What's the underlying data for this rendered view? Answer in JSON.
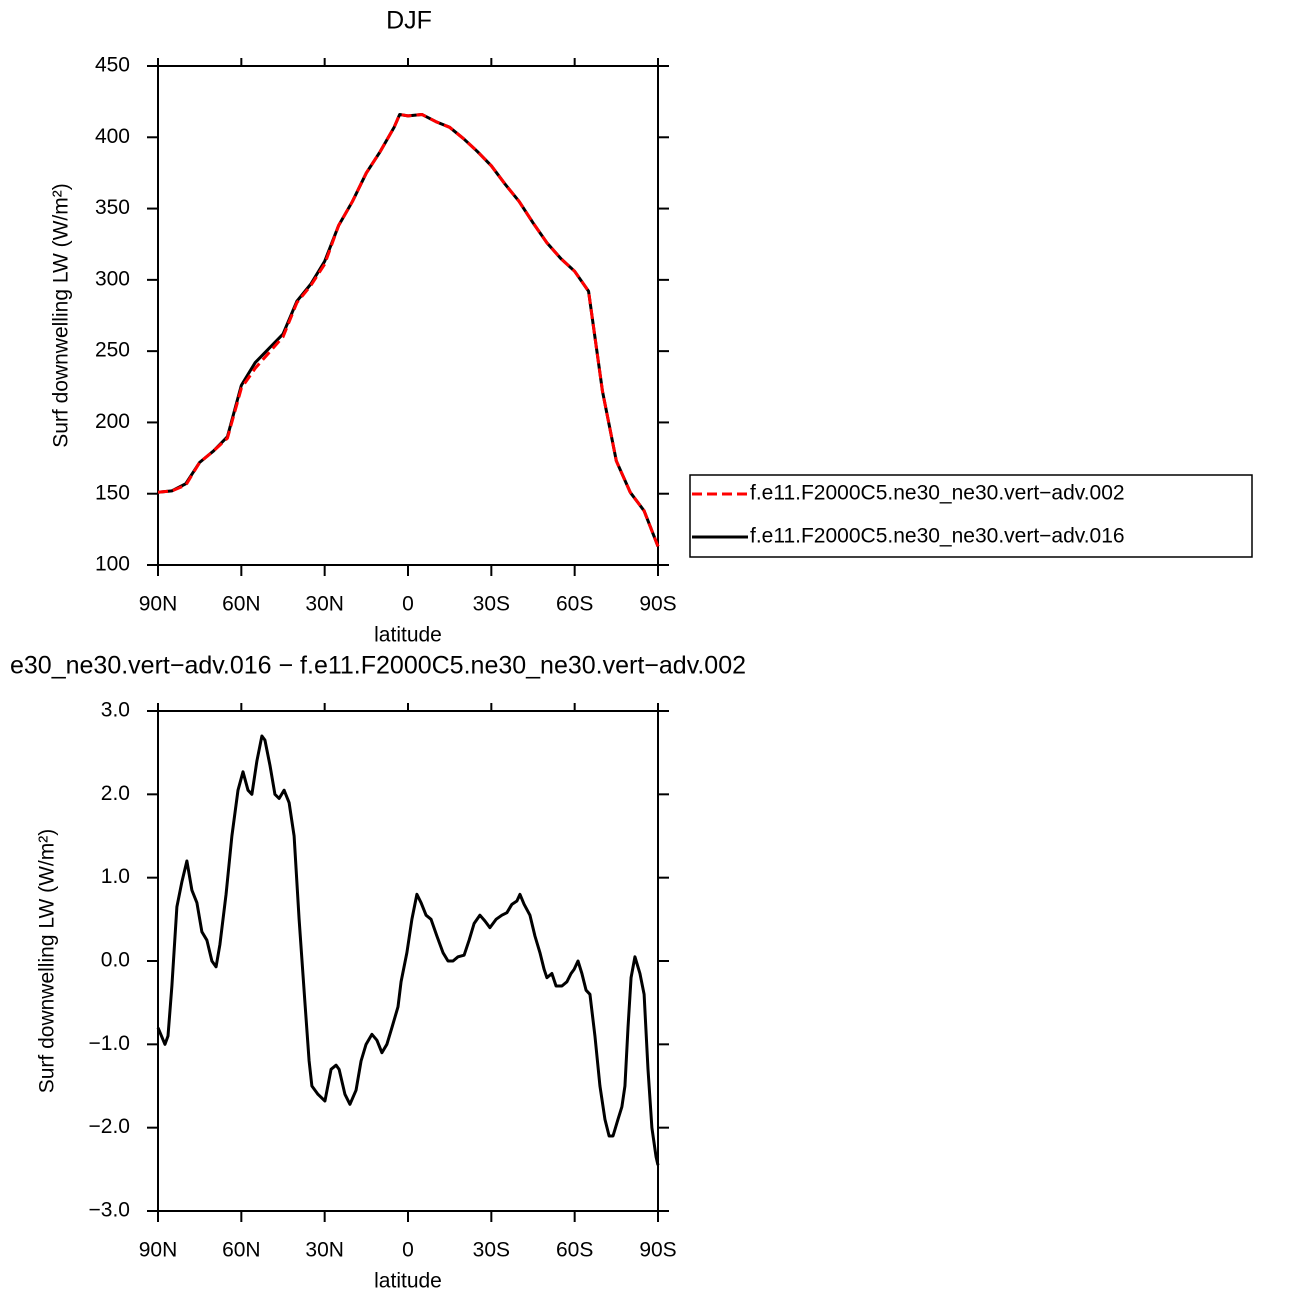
{
  "chart_data": [
    {
      "type": "line",
      "title": "DJF",
      "xlabel": "latitude",
      "ylabel": "Surf downwelling LW (W/m²)",
      "x": [
        90,
        85,
        80,
        75,
        70,
        65,
        60,
        55,
        50,
        45,
        40,
        35,
        30,
        25,
        20,
        15,
        10,
        5,
        3,
        0,
        -5,
        -10,
        -15,
        -20,
        -25,
        -30,
        -35,
        -40,
        -45,
        -50,
        -55,
        -60,
        -65,
        -70,
        -75,
        -80,
        -85,
        -90
      ],
      "series": [
        {
          "name": "f.e11.F2000C5.ne30_ne30.vert−adv.002",
          "color": "#ff0000",
          "dash": true,
          "values": [
            151,
            152,
            156,
            172,
            180,
            189,
            224,
            238,
            249,
            260,
            284,
            296,
            311,
            338,
            355,
            375,
            390,
            407,
            416,
            415,
            416,
            411,
            407,
            399,
            390,
            380,
            367,
            355,
            340,
            326,
            315,
            306,
            292,
            222,
            173,
            151,
            138,
            113
          ]
        },
        {
          "name": "f.e11.F2000C5.ne30_ne30.vert−adv.016",
          "color": "#000000",
          "dash": false,
          "values": [
            151,
            152,
            157,
            172,
            180,
            190,
            226,
            242,
            252,
            262,
            285,
            297,
            313,
            338,
            355,
            375,
            390,
            407,
            416,
            415,
            416,
            411,
            407,
            399,
            390,
            380,
            367,
            355,
            340,
            326,
            315,
            306,
            292,
            222,
            173,
            151,
            138,
            113
          ]
        }
      ],
      "xlim": [
        90,
        -90
      ],
      "xticks": [
        {
          "value": 90,
          "label": "90N"
        },
        {
          "value": 60,
          "label": "60N"
        },
        {
          "value": 30,
          "label": "30N"
        },
        0,
        {
          "value": -30,
          "label": "30S"
        },
        {
          "value": -60,
          "label": "60S"
        },
        {
          "value": -90,
          "label": "90S"
        }
      ],
      "ylim": [
        100,
        450
      ],
      "yticks": [
        100,
        150,
        200,
        250,
        300,
        350,
        400,
        450
      ],
      "legend": "right"
    },
    {
      "type": "line",
      "title": "e30_ne30.vert−adv.016 − f.e11.F2000C5.ne30_ne30.vert−adv.002",
      "xlabel": "latitude",
      "ylabel": "Surf downwelling LW (W/m²)",
      "x": [
        90,
        87.5,
        86.4,
        85.0,
        83.2,
        81.4,
        79.6,
        77.8,
        76.0,
        74.2,
        72.4,
        70.6,
        69.1,
        67.7,
        65.5,
        63.4,
        61.2,
        59.4,
        57.6,
        56.2,
        54.4,
        52.6,
        51.5,
        49.7,
        47.9,
        46.4,
        44.6,
        42.8,
        41.0,
        39.2,
        37.1,
        35.6,
        34.6,
        32.4,
        29.9,
        27.7,
        25.9,
        24.8,
        22.7,
        20.9,
        18.7,
        16.9,
        15.1,
        13.0,
        11.2,
        9.4,
        7.6,
        5.8,
        3.6,
        2.5,
        0.4,
        -1.4,
        -3.2,
        -4.7,
        -6.5,
        -8.3,
        -10.4,
        -12.6,
        -14.4,
        -16.2,
        -18.0,
        -20.2,
        -22.0,
        -23.8,
        -25.9,
        -27.7,
        -29.5,
        -31.7,
        -33.8,
        -35.6,
        -37.4,
        -39.2,
        -40.3,
        -41.8,
        -43.9,
        -45.7,
        -47.5,
        -49.0,
        -50.0,
        -51.8,
        -53.3,
        -55.4,
        -57.2,
        -58.7,
        -59.8,
        -61.2,
        -62.6,
        -64.1,
        -65.5,
        -67.3,
        -69.1,
        -70.9,
        -72.4,
        -73.8,
        -75.6,
        -77.0,
        -78.1,
        -79.2,
        -80.3,
        -81.7,
        -83.5,
        -85.0,
        -86.4,
        -87.8,
        -89.3,
        -90
      ],
      "series": [
        {
          "color": "#000000",
          "dash": false,
          "values": [
            -0.8,
            -1.0,
            -0.9,
            -0.3,
            0.65,
            0.95,
            1.2,
            0.85,
            0.7,
            0.35,
            0.25,
            0.0,
            -0.07,
            0.2,
            0.8,
            1.5,
            2.05,
            2.27,
            2.05,
            2.0,
            2.4,
            2.7,
            2.65,
            2.35,
            2.0,
            1.95,
            2.05,
            1.9,
            1.5,
            0.5,
            -0.5,
            -1.2,
            -1.5,
            -1.6,
            -1.68,
            -1.3,
            -1.25,
            -1.3,
            -1.6,
            -1.72,
            -1.55,
            -1.2,
            -1.0,
            -0.88,
            -0.95,
            -1.1,
            -1.0,
            -0.8,
            -0.55,
            -0.25,
            0.1,
            0.5,
            0.8,
            0.7,
            0.55,
            0.5,
            0.3,
            0.1,
            0.0,
            0.0,
            0.05,
            0.07,
            0.25,
            0.45,
            0.55,
            0.48,
            0.4,
            0.5,
            0.55,
            0.58,
            0.68,
            0.72,
            0.8,
            0.68,
            0.55,
            0.3,
            0.1,
            -0.1,
            -0.2,
            -0.15,
            -0.3,
            -0.3,
            -0.25,
            -0.15,
            -0.1,
            0.0,
            -0.15,
            -0.35,
            -0.4,
            -0.9,
            -1.5,
            -1.9,
            -2.1,
            -2.1,
            -1.9,
            -1.75,
            -1.5,
            -0.8,
            -0.2,
            0.05,
            -0.15,
            -0.4,
            -1.3,
            -2.0,
            -2.35,
            -2.45
          ]
        }
      ],
      "xlim": [
        90,
        -90
      ],
      "xticks": [
        {
          "value": 90,
          "label": "90N"
        },
        {
          "value": 60,
          "label": "60N"
        },
        {
          "value": 30,
          "label": "30N"
        },
        0,
        {
          "value": -30,
          "label": "30S"
        },
        {
          "value": -60,
          "label": "60S"
        },
        {
          "value": -90,
          "label": "90S"
        }
      ],
      "ylim": [
        -3,
        3
      ],
      "yticks": [
        {
          "value": -3,
          "label": "−3.0"
        },
        {
          "value": -2,
          "label": "−2.0"
        },
        {
          "value": -1,
          "label": "−1.0"
        },
        {
          "value": 0,
          "label": "0.0"
        },
        {
          "value": 1,
          "label": "1.0"
        },
        {
          "value": 2,
          "label": "2.0"
        },
        {
          "value": 3,
          "label": "3.0"
        }
      ]
    }
  ]
}
